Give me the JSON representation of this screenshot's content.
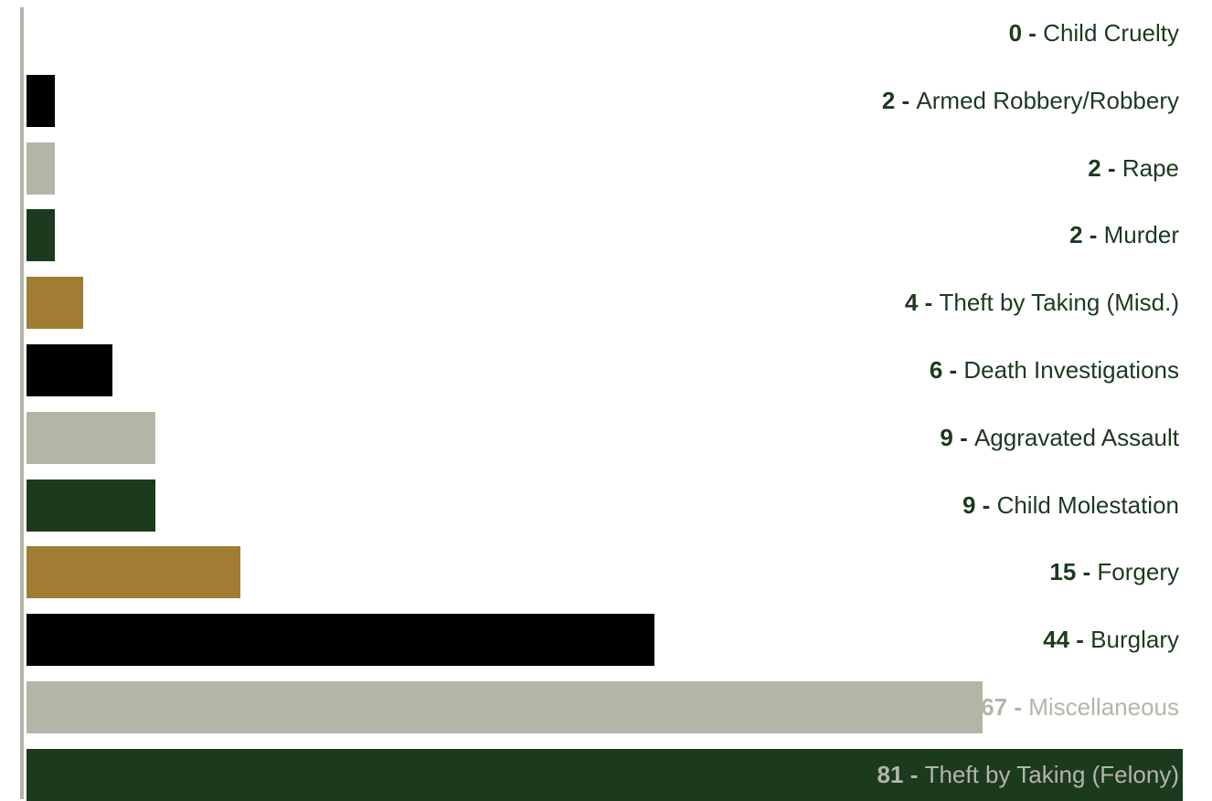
{
  "chart_data": {
    "type": "bar",
    "orientation": "horizontal",
    "title": "",
    "xlabel": "",
    "ylabel": "",
    "xlim": [
      0,
      81
    ],
    "grid": false,
    "legend": "none",
    "separator": " - ",
    "categories": [
      "Child Cruelty",
      "Armed Robbery/Robbery",
      "Rape",
      "Murder",
      "Theft by Taking (Misd.)",
      "Death Investigations",
      "Aggravated Assault",
      "Child Molestation",
      "Forgery",
      "Burglary",
      "Miscellaneous",
      "Theft by Taking (Felony)"
    ],
    "values": [
      0,
      2,
      2,
      2,
      4,
      6,
      9,
      9,
      15,
      44,
      67,
      81
    ],
    "bar_colors": [
      "#1c3a1d",
      "#000000",
      "#b5b5a7",
      "#1c3a1d",
      "#a07d33",
      "#000000",
      "#b5b5a7",
      "#1c3a1d",
      "#a07d33",
      "#000000",
      "#b5b5a7",
      "#1c3a1d"
    ],
    "colors": {
      "label_text": "#1c3a1d",
      "label_text_on_bar": "#b5b5a7",
      "axis": "#b5b5a7"
    }
  }
}
